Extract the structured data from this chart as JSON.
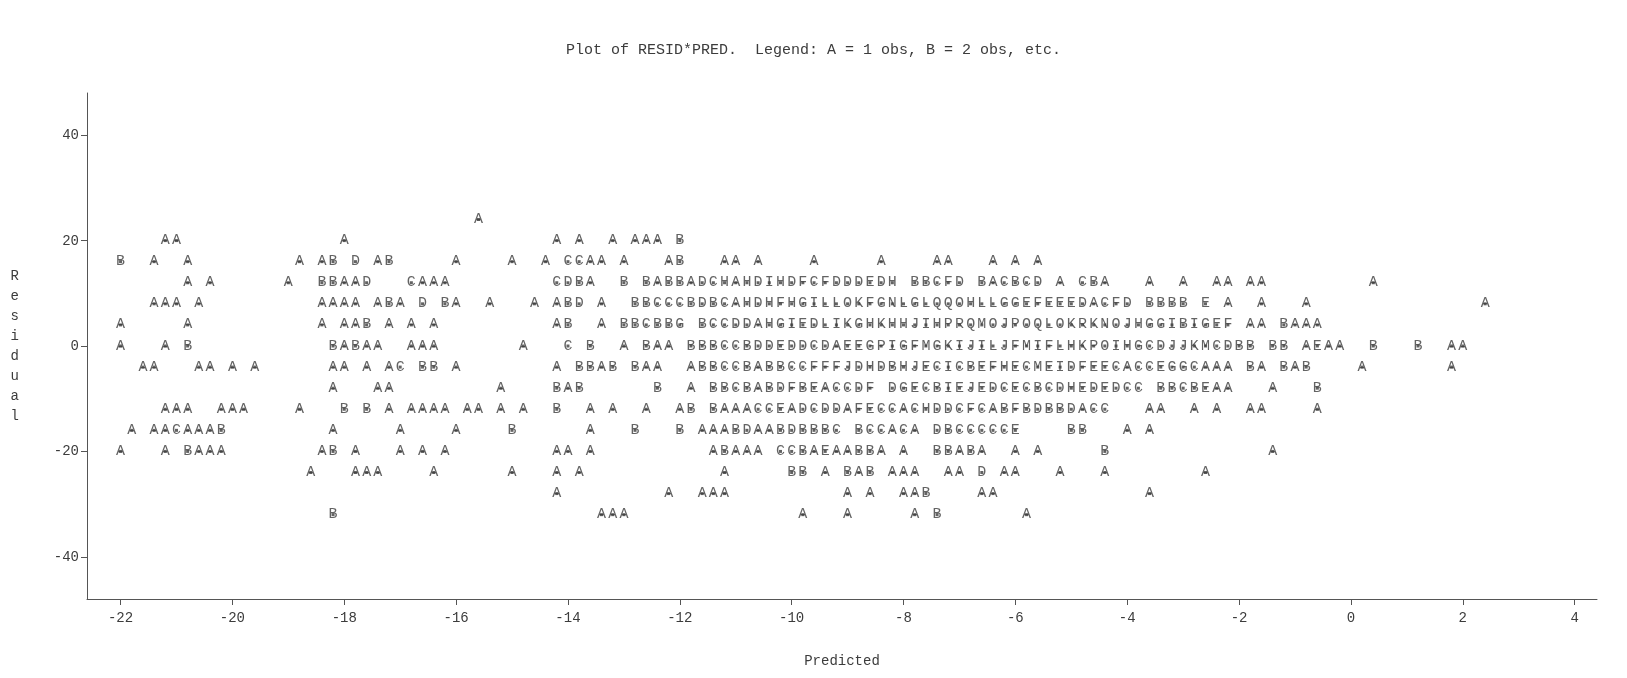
{
  "chart_data": {
    "type": "scatter",
    "title": "Plot of RESID*PRED.  Legend: A = 1 obs, B = 2 obs, etc.",
    "xlabel": "Predicted",
    "ylabel": "Residual",
    "xlim": [
      -22.6,
      4.4
    ],
    "xticks": [
      -22,
      -20,
      -18,
      -16,
      -14,
      -12,
      -10,
      -8,
      -6,
      -4,
      -2,
      0,
      2,
      4
    ],
    "ylim": [
      -48,
      48
    ],
    "yticks": [
      -40,
      -20,
      0,
      20,
      40
    ],
    "grid": false,
    "series": [
      {
        "color": "#3c3c3c",
        "x": [
          -15.6
        ],
        "values": [
          24
        ],
        "value_labels": [
          "A"
        ]
      },
      {
        "color": "#3c3c3c",
        "x": [
          -21.2,
          -21.0,
          -18.0,
          -14.2,
          -13.8,
          -13.2,
          -12.8,
          -12.6,
          -12.4,
          -12.0
        ],
        "values": [
          20,
          20,
          20,
          20,
          20,
          20,
          20,
          20,
          20,
          20
        ],
        "value_labels": [
          "A",
          "A",
          "A",
          "A",
          "A",
          "A",
          "A",
          "A",
          "A",
          "B"
        ]
      },
      {
        "color": "#3c3c3c",
        "x": [
          -22.0,
          -21.4,
          -20.8,
          -18.8,
          -18.4,
          -18.2,
          -17.8,
          -17.4,
          -17.2,
          -16.0,
          -15.0,
          -14.4,
          -14.0,
          -13.8,
          -13.6,
          -13.4,
          -13.0,
          -12.2,
          -12.0,
          -11.2,
          -11.0,
          -10.6,
          -9.6,
          -8.4,
          -7.4,
          -7.2,
          -6.4,
          -6.0,
          -5.6
        ],
        "values": [
          16,
          16,
          16,
          16,
          16,
          16,
          16,
          16,
          16,
          16,
          16,
          16,
          16,
          16,
          16,
          16,
          16,
          16,
          16,
          16,
          16,
          16,
          16,
          16,
          16,
          16,
          16,
          16,
          16
        ],
        "value_labels": [
          "B",
          "A",
          "A",
          "A",
          "A",
          "B",
          "D",
          "A",
          "B",
          "A",
          "A",
          "A",
          "C",
          "C",
          "A",
          "A",
          "A",
          "A",
          "B",
          "A",
          "A",
          "A",
          "A",
          "A",
          "A",
          "A",
          "A",
          "A",
          "A"
        ]
      },
      {
        "color": "#3c3c3c",
        "x": [
          -20.8,
          -20.4,
          -19.0,
          -18.4,
          -18.2,
          -18.0,
          -17.8,
          -17.6,
          -16.8,
          -16.6,
          -16.4,
          -16.2,
          -14.2,
          -14.0,
          -13.8,
          -13.6,
          -13.0,
          -12.6,
          -12.4,
          -12.2,
          -12.0,
          -11.8,
          -11.6,
          -11.4,
          -11.2,
          -11.0,
          -10.8,
          -10.6,
          -10.4,
          -10.2,
          -10.0,
          -9.8,
          -9.6,
          -9.4,
          -9.2,
          -9.0,
          -8.8,
          -8.6,
          -8.4,
          -8.2,
          -7.8,
          -7.6,
          -7.4,
          -7.2,
          -7.0,
          -6.6,
          -6.4,
          -6.2,
          -6.0,
          -5.8,
          -5.6,
          -5.2,
          -4.8,
          -4.6,
          -4.4,
          -3.6,
          -3.0,
          -2.4,
          -2.2,
          -1.8,
          -1.6,
          0.4
        ],
        "values": [
          12,
          12,
          12,
          12,
          12,
          12,
          12,
          12,
          12,
          12,
          12,
          12,
          12,
          12,
          12,
          12,
          12,
          12,
          12,
          12,
          12,
          12,
          12,
          12,
          12,
          12,
          12,
          12,
          12,
          12,
          12,
          12,
          12,
          12,
          12,
          12,
          12,
          12,
          12,
          12,
          12,
          12,
          12,
          12,
          12,
          12,
          12,
          12,
          12,
          12,
          12,
          12,
          12,
          12,
          12,
          12,
          12,
          12,
          12,
          12,
          12,
          12
        ],
        "value_labels": [
          "A",
          "A",
          "A",
          "B",
          "B",
          "A",
          "A",
          "D",
          "C",
          "A",
          "A",
          "A",
          "C",
          "D",
          "B",
          "A",
          "B",
          "B",
          "A",
          "B",
          "B",
          "A",
          "D",
          "C",
          "H",
          "A",
          "H",
          "D",
          "I",
          "H",
          "D",
          "F",
          "C",
          "F",
          "D",
          "D",
          "D",
          "E",
          "D",
          "H",
          "B",
          "B",
          "C",
          "F",
          "D",
          "B",
          "A",
          "C",
          "B",
          "C",
          "D",
          "A",
          "C",
          "B",
          "A",
          "A",
          "A",
          "A",
          "A",
          "A",
          "A",
          "A"
        ]
      },
      {
        "color": "#3c3c3c",
        "x": [
          -21.4,
          -21.2,
          -21.0,
          -20.6,
          -18.4,
          -18.2,
          -18.0,
          -17.8,
          -17.4,
          -17.2,
          -17.0,
          -16.6,
          -16.2,
          -16.0,
          -15.4,
          -14.6,
          -14.2,
          -14.0,
          -13.8,
          -13.4,
          -12.8,
          -12.6,
          -12.4,
          -12.2,
          -12.0,
          -11.8,
          -11.6,
          -11.4,
          -11.2,
          -11.0,
          -10.8,
          -10.6,
          -10.4,
          -10.2,
          -10.0,
          -9.8,
          -9.6,
          -9.4,
          -9.2,
          -9.0,
          -8.8,
          -8.6,
          -8.4,
          -8.2,
          -8.0,
          -7.8,
          -7.6,
          -7.4,
          -7.2,
          -7.0,
          -6.8,
          -6.6,
          -6.4,
          -6.2,
          -6.0,
          -5.8,
          -5.6,
          -5.4,
          -5.2,
          -5.0,
          -4.8,
          -4.6,
          -4.4,
          -4.2,
          -4.0,
          -3.6,
          -3.4,
          -3.2,
          -3.0,
          -2.6,
          -2.2,
          -1.6,
          -0.8,
          2.4
        ],
        "values": [
          8,
          8,
          8,
          8,
          8,
          8,
          8,
          8,
          8,
          8,
          8,
          8,
          8,
          8,
          8,
          8,
          8,
          8,
          8,
          8,
          8,
          8,
          8,
          8,
          8,
          8,
          8,
          8,
          8,
          8,
          8,
          8,
          8,
          8,
          8,
          8,
          8,
          8,
          8,
          8,
          8,
          8,
          8,
          8,
          8,
          8,
          8,
          8,
          8,
          8,
          8,
          8,
          8,
          8,
          8,
          8,
          8,
          8,
          8,
          8,
          8,
          8,
          8,
          8,
          8,
          8,
          8,
          8,
          8,
          8,
          8,
          8,
          8,
          8
        ],
        "value_labels": [
          "A",
          "A",
          "A",
          "A",
          "A",
          "A",
          "A",
          "A",
          "A",
          "B",
          "A",
          "D",
          "B",
          "A",
          "A",
          "A",
          "A",
          "B",
          "D",
          "A",
          "B",
          "B",
          "C",
          "C",
          "C",
          "B",
          "D",
          "B",
          "C",
          "A",
          "H",
          "D",
          "H",
          "F",
          "H",
          "G",
          "I",
          "L",
          "L",
          "O",
          "K",
          "F",
          "G",
          "N",
          "L",
          "G",
          "L",
          "Q",
          "Q",
          "O",
          "H",
          "L",
          "L",
          "G",
          "G",
          "E",
          "F",
          "E",
          "E",
          "E",
          "D",
          "A",
          "C",
          "F",
          "D",
          "B",
          "B",
          "B",
          "B",
          "E",
          "A",
          "A",
          "A",
          "A"
        ]
      },
      {
        "color": "#3c3c3c",
        "x": [
          -22.0,
          -20.8,
          -18.4,
          -18.0,
          -17.8,
          -17.6,
          -17.2,
          -16.8,
          -16.4,
          -14.2,
          -14.0,
          -13.4,
          -13.0,
          -12.8,
          -12.6,
          -12.4,
          -12.2,
          -12.0,
          -11.6,
          -11.4,
          -11.2,
          -11.0,
          -10.8,
          -10.6,
          -10.4,
          -10.2,
          -10.0,
          -9.8,
          -9.6,
          -9.4,
          -9.2,
          -9.0,
          -8.8,
          -8.6,
          -8.4,
          -8.2,
          -8.0,
          -7.8,
          -7.6,
          -7.4,
          -7.2,
          -7.0,
          -6.8,
          -6.6,
          -6.4,
          -6.2,
          -6.0,
          -5.8,
          -5.6,
          -5.4,
          -5.2,
          -5.0,
          -4.8,
          -4.6,
          -4.4,
          -4.2,
          -4.0,
          -3.8,
          -3.6,
          -3.4,
          -3.2,
          -3.0,
          -2.8,
          -2.6,
          -2.4,
          -2.2,
          -1.8,
          -1.6,
          -1.2,
          -1.0,
          -0.8,
          -0.6
        ],
        "values": [
          4,
          4,
          4,
          4,
          4,
          4,
          4,
          4,
          4,
          4,
          4,
          4,
          4,
          4,
          4,
          4,
          4,
          4,
          4,
          4,
          4,
          4,
          4,
          4,
          4,
          4,
          4,
          4,
          4,
          4,
          4,
          4,
          4,
          4,
          4,
          4,
          4,
          4,
          4,
          4,
          4,
          4,
          4,
          4,
          4,
          4,
          4,
          4,
          4,
          4,
          4,
          4,
          4,
          4,
          4,
          4,
          4,
          4,
          4,
          4,
          4,
          4,
          4,
          4,
          4,
          4,
          4,
          4,
          4,
          4,
          4,
          4
        ],
        "value_labels": [
          "A",
          "A",
          "A",
          "A",
          "A",
          "B",
          "A",
          "A",
          "A",
          "A",
          "B",
          "A",
          "B",
          "B",
          "C",
          "B",
          "B",
          "G",
          "B",
          "C",
          "C",
          "D",
          "D",
          "A",
          "H",
          "G",
          "I",
          "E",
          "D",
          "L",
          "I",
          "K",
          "G",
          "H",
          "K",
          "H",
          "H",
          "J",
          "I",
          "H",
          "P",
          "R",
          "Q",
          "M",
          "O",
          "J",
          "P",
          "O",
          "Q",
          "L",
          "O",
          "K",
          "R",
          "K",
          "N",
          "O",
          "J",
          "H",
          "G",
          "G",
          "I",
          "B",
          "I",
          "G",
          "E",
          "F",
          "A",
          "A",
          "B",
          "A",
          "A",
          "A"
        ]
      },
      {
        "color": "#3c3c3c",
        "x": [
          -22.0,
          -21.2,
          -20.8,
          -18.2,
          -18.0,
          -17.8,
          -17.6,
          -17.4,
          -16.8,
          -16.6,
          -16.4,
          -14.8,
          -14.0,
          -13.6,
          -13.0,
          -12.6,
          -12.4,
          -12.2,
          -11.8,
          -11.6,
          -11.4,
          -11.2,
          -11.0,
          -10.8,
          -10.6,
          -10.4,
          -10.2,
          -10.0,
          -9.8,
          -9.6,
          -9.4,
          -9.2,
          -9.0,
          -8.8,
          -8.6,
          -8.4,
          -8.2,
          -8.0,
          -7.8,
          -7.6,
          -7.4,
          -7.2,
          -7.0,
          -6.8,
          -6.6,
          -6.4,
          -6.2,
          -6.0,
          -5.8,
          -5.6,
          -5.4,
          -5.2,
          -5.0,
          -4.8,
          -4.6,
          -4.4,
          -4.2,
          -4.0,
          -3.8,
          -3.6,
          -3.4,
          -3.2,
          -3.0,
          -2.8,
          -2.6,
          -2.4,
          -2.2,
          -2.0,
          -1.8,
          -1.4,
          -1.2,
          -0.8,
          -0.6,
          -0.4,
          -0.2,
          0.4,
          1.2,
          1.8,
          2.0
        ],
        "values": [
          0,
          0,
          0,
          0,
          0,
          0,
          0,
          0,
          0,
          0,
          0,
          0,
          0,
          0,
          0,
          0,
          0,
          0,
          0,
          0,
          0,
          0,
          0,
          0,
          0,
          0,
          0,
          0,
          0,
          0,
          0,
          0,
          0,
          0,
          0,
          0,
          0,
          0,
          0,
          0,
          0,
          0,
          0,
          0,
          0,
          0,
          0,
          0,
          0,
          0,
          0,
          0,
          0,
          0,
          0,
          0,
          0,
          0,
          0,
          0,
          0,
          0,
          0,
          0,
          0,
          0,
          0,
          0,
          0,
          0,
          0,
          0,
          0,
          0,
          0,
          0,
          0,
          0,
          0
        ],
        "value_labels": [
          "A",
          "A",
          "B",
          "B",
          "A",
          "B",
          "A",
          "A",
          "A",
          "A",
          "A",
          "A",
          "C",
          "B",
          "A",
          "B",
          "A",
          "A",
          "B",
          "B",
          "B",
          "C",
          "C",
          "B",
          "D",
          "D",
          "E",
          "D",
          "D",
          "C",
          "D",
          "A",
          "E",
          "E",
          "G",
          "P",
          "I",
          "G",
          "F",
          "M",
          "G",
          "K",
          "I",
          "J",
          "I",
          "L",
          "J",
          "F",
          "M",
          "I",
          "F",
          "L",
          "H",
          "K",
          "P",
          "O",
          "I",
          "H",
          "G",
          "C",
          "D",
          "J",
          "J",
          "K",
          "M",
          "C",
          "D",
          "B",
          "B",
          "B",
          "B",
          "A",
          "E",
          "A",
          "A",
          "B",
          "B",
          "A",
          "A"
        ]
      },
      {
        "color": "#3c3c3c",
        "x": [
          -21.6,
          -21.4,
          -20.6,
          -20.4,
          -20.0,
          -19.6,
          -18.2,
          -18.0,
          -17.6,
          -17.2,
          -17.0,
          -16.6,
          -16.4,
          -16.0,
          -14.2,
          -13.8,
          -13.6,
          -13.4,
          -13.2,
          -12.8,
          -12.6,
          -12.4,
          -11.8,
          -11.6,
          -11.4,
          -11.2,
          -11.0,
          -10.8,
          -10.6,
          -10.4,
          -10.2,
          -10.0,
          -9.8,
          -9.6,
          -9.4,
          -9.2,
          -9.0,
          -8.8,
          -8.6,
          -8.4,
          -8.2,
          -8.0,
          -7.8,
          -7.6,
          -7.4,
          -7.2,
          -7.0,
          -6.8,
          -6.6,
          -6.4,
          -6.2,
          -6.0,
          -5.8,
          -5.6,
          -5.4,
          -5.2,
          -5.0,
          -4.8,
          -4.6,
          -4.4,
          -4.2,
          -4.0,
          -3.8,
          -3.6,
          -3.4,
          -3.2,
          -3.0,
          -2.8,
          -2.6,
          -2.4,
          -2.2,
          -1.8,
          -1.6,
          -1.2,
          -1.0,
          -0.8,
          0.2,
          1.8
        ],
        "values": [
          -4,
          -4,
          -4,
          -4,
          -4,
          -4,
          -4,
          -4,
          -4,
          -4,
          -4,
          -4,
          -4,
          -4,
          -4,
          -4,
          -4,
          -4,
          -4,
          -4,
          -4,
          -4,
          -4,
          -4,
          -4,
          -4,
          -4,
          -4,
          -4,
          -4,
          -4,
          -4,
          -4,
          -4,
          -4,
          -4,
          -4,
          -4,
          -4,
          -4,
          -4,
          -4,
          -4,
          -4,
          -4,
          -4,
          -4,
          -4,
          -4,
          -4,
          -4,
          -4,
          -4,
          -4,
          -4,
          -4,
          -4,
          -4,
          -4,
          -4,
          -4,
          -4,
          -4,
          -4,
          -4,
          -4,
          -4,
          -4,
          -4,
          -4,
          -4,
          -4,
          -4,
          -4,
          -4,
          -4,
          -4,
          -4
        ],
        "value_labels": [
          "A",
          "A",
          "A",
          "A",
          "A",
          "A",
          "A",
          "A",
          "A",
          "A",
          "C",
          "B",
          "B",
          "A",
          "A",
          "B",
          "B",
          "A",
          "B",
          "B",
          "A",
          "A",
          "A",
          "B",
          "B",
          "C",
          "C",
          "B",
          "A",
          "B",
          "B",
          "C",
          "C",
          "F",
          "F",
          "F",
          "J",
          "D",
          "H",
          "D",
          "B",
          "H",
          "J",
          "E",
          "C",
          "I",
          "C",
          "B",
          "E",
          "F",
          "H",
          "E",
          "C",
          "M",
          "E",
          "I",
          "D",
          "F",
          "E",
          "E",
          "C",
          "A",
          "C",
          "C",
          "E",
          "G",
          "G",
          "C",
          "A",
          "A",
          "A",
          "B",
          "A",
          "B",
          "A",
          "B",
          "A",
          "A"
        ]
      },
      {
        "color": "#3c3c3c",
        "x": [
          -18.2,
          -17.4,
          -17.2,
          -15.2,
          -14.2,
          -14.0,
          -13.8,
          -12.4,
          -11.8,
          -11.4,
          -11.2,
          -11.0,
          -10.8,
          -10.6,
          -10.4,
          -10.2,
          -10.0,
          -9.8,
          -9.6,
          -9.4,
          -9.2,
          -9.0,
          -8.8,
          -8.6,
          -8.2,
          -8.0,
          -7.8,
          -7.6,
          -7.4,
          -7.2,
          -7.0,
          -6.8,
          -6.6,
          -6.4,
          -6.2,
          -6.0,
          -5.8,
          -5.6,
          -5.4,
          -5.2,
          -5.0,
          -4.8,
          -4.6,
          -4.4,
          -4.2,
          -4.0,
          -3.8,
          -3.4,
          -3.2,
          -3.0,
          -2.8,
          -2.6,
          -2.4,
          -2.2,
          -1.4,
          -0.6
        ],
        "values": [
          -8,
          -8,
          -8,
          -8,
          -8,
          -8,
          -8,
          -8,
          -8,
          -8,
          -8,
          -8,
          -8,
          -8,
          -8,
          -8,
          -8,
          -8,
          -8,
          -8,
          -8,
          -8,
          -8,
          -8,
          -8,
          -8,
          -8,
          -8,
          -8,
          -8,
          -8,
          -8,
          -8,
          -8,
          -8,
          -8,
          -8,
          -8,
          -8,
          -8,
          -8,
          -8,
          -8,
          -8,
          -8,
          -8,
          -8,
          -8,
          -8,
          -8,
          -8,
          -8,
          -8,
          -8,
          -8,
          -8
        ],
        "value_labels": [
          "A",
          "A",
          "A",
          "A",
          "B",
          "A",
          "B",
          "B",
          "A",
          "B",
          "B",
          "C",
          "B",
          "A",
          "B",
          "D",
          "F",
          "B",
          "E",
          "A",
          "C",
          "C",
          "D",
          "F",
          "D",
          "G",
          "E",
          "C",
          "B",
          "I",
          "E",
          "J",
          "E",
          "D",
          "C",
          "E",
          "C",
          "B",
          "C",
          "D",
          "H",
          "E",
          "D",
          "E",
          "D",
          "C",
          "C",
          "B",
          "B",
          "C",
          "B",
          "E",
          "A",
          "A",
          "A",
          "B"
        ]
      },
      {
        "color": "#3c3c3c",
        "x": [
          -21.2,
          -21.0,
          -20.8,
          -20.2,
          -20.0,
          -19.8,
          -18.8,
          -18.0,
          -17.6,
          -17.2,
          -16.8,
          -16.6,
          -16.4,
          -16.2,
          -15.8,
          -15.6,
          -15.2,
          -14.8,
          -14.2,
          -13.6,
          -13.2,
          -12.6,
          -12.0,
          -11.8,
          -11.4,
          -11.2,
          -11.0,
          -10.8,
          -10.6,
          -10.4,
          -10.2,
          -10.0,
          -9.8,
          -9.6,
          -9.4,
          -9.2,
          -9.0,
          -8.8,
          -8.6,
          -8.4,
          -8.2,
          -8.0,
          -7.8,
          -7.6,
          -7.4,
          -7.2,
          -7.0,
          -6.8,
          -6.6,
          -6.4,
          -6.2,
          -6.0,
          -5.8,
          -5.6,
          -5.4,
          -5.2,
          -5.0,
          -4.8,
          -4.6,
          -4.4,
          -3.6,
          -3.4,
          -2.8,
          -2.4,
          -1.8,
          -1.6,
          -0.6
        ],
        "values": [
          -12,
          -12,
          -12,
          -12,
          -12,
          -12,
          -12,
          -12,
          -12,
          -12,
          -12,
          -12,
          -12,
          -12,
          -12,
          -12,
          -12,
          -12,
          -12,
          -12,
          -12,
          -12,
          -12,
          -12,
          -12,
          -12,
          -12,
          -12,
          -12,
          -12,
          -12,
          -12,
          -12,
          -12,
          -12,
          -12,
          -12,
          -12,
          -12,
          -12,
          -12,
          -12,
          -12,
          -12,
          -12,
          -12,
          -12,
          -12,
          -12,
          -12,
          -12,
          -12,
          -12,
          -12,
          -12,
          -12,
          -12,
          -12,
          -12,
          -12,
          -12,
          -12,
          -12,
          -12,
          -12,
          -12,
          -12
        ],
        "value_labels": [
          "A",
          "A",
          "A",
          "A",
          "A",
          "A",
          "A",
          "B",
          "B",
          "A",
          "A",
          "A",
          "A",
          "A",
          "A",
          "A",
          "A",
          "A",
          "B",
          "A",
          "A",
          "A",
          "A",
          "B",
          "B",
          "A",
          "A",
          "A",
          "C",
          "C",
          "E",
          "A",
          "D",
          "C",
          "D",
          "D",
          "A",
          "F",
          "E",
          "C",
          "C",
          "A",
          "C",
          "H",
          "D",
          "D",
          "C",
          "F",
          "C",
          "A",
          "B",
          "F",
          "B",
          "D",
          "B",
          "B",
          "D",
          "A",
          "C",
          "C",
          "A",
          "A",
          "A",
          "A",
          "A",
          "A",
          "A"
        ]
      },
      {
        "color": "#3c3c3c",
        "x": [
          -21.8,
          -21.4,
          -21.2,
          -21.0,
          -20.8,
          -20.6,
          -20.4,
          -20.2,
          -18.2,
          -17.0,
          -16.0,
          -15.0,
          -13.6,
          -12.8,
          -12.0,
          -11.6,
          -11.4,
          -11.2,
          -11.0,
          -10.8,
          -10.6,
          -10.4,
          -10.2,
          -10.0,
          -9.8,
          -9.6,
          -9.4,
          -9.2,
          -8.8,
          -8.6,
          -8.4,
          -8.2,
          -8.0,
          -7.8,
          -7.4,
          -7.2,
          -7.0,
          -6.8,
          -6.6,
          -6.4,
          -6.2,
          -6.0,
          -5.0,
          -4.8,
          -4.0,
          -3.6
        ],
        "values": [
          -16,
          -16,
          -16,
          -16,
          -16,
          -16,
          -16,
          -16,
          -16,
          -16,
          -16,
          -16,
          -16,
          -16,
          -16,
          -16,
          -16,
          -16,
          -16,
          -16,
          -16,
          -16,
          -16,
          -16,
          -16,
          -16,
          -16,
          -16,
          -16,
          -16,
          -16,
          -16,
          -16,
          -16,
          -16,
          -16,
          -16,
          -16,
          -16,
          -16,
          -16,
          -16,
          -16,
          -16,
          -16,
          -16
        ],
        "value_labels": [
          "A",
          "A",
          "A",
          "C",
          "A",
          "A",
          "A",
          "B",
          "A",
          "A",
          "A",
          "B",
          "A",
          "B",
          "B",
          "A",
          "A",
          "A",
          "B",
          "D",
          "A",
          "A",
          "B",
          "D",
          "B",
          "B",
          "B",
          "C",
          "B",
          "C",
          "C",
          "A",
          "C",
          "A",
          "D",
          "B",
          "C",
          "C",
          "C",
          "C",
          "C",
          "E",
          "B",
          "B",
          "A",
          "A"
        ]
      },
      {
        "color": "#3c3c3c",
        "x": [
          -22.0,
          -21.2,
          -20.8,
          -20.6,
          -20.4,
          -20.2,
          -18.4,
          -18.2,
          -17.8,
          -17.0,
          -16.6,
          -16.2,
          -14.2,
          -14.0,
          -13.6,
          -11.4,
          -11.2,
          -11.0,
          -10.8,
          -10.6,
          -10.2,
          -10.0,
          -9.8,
          -9.6,
          -9.4,
          -9.2,
          -9.0,
          -8.8,
          -8.6,
          -8.4,
          -8.0,
          -7.4,
          -7.2,
          -7.0,
          -6.8,
          -6.6,
          -6.0,
          -5.6,
          -4.4,
          -1.4
        ],
        "values": [
          -20,
          -20,
          -20,
          -20,
          -20,
          -20,
          -20,
          -20,
          -20,
          -20,
          -20,
          -20,
          -20,
          -20,
          -20,
          -20,
          -20,
          -20,
          -20,
          -20,
          -20,
          -20,
          -20,
          -20,
          -20,
          -20,
          -20,
          -20,
          -20,
          -20,
          -20,
          -20,
          -20,
          -20,
          -20,
          -20,
          -20,
          -20,
          -20,
          -20
        ],
        "value_labels": [
          "A",
          "A",
          "B",
          "A",
          "A",
          "A",
          "A",
          "B",
          "A",
          "A",
          "A",
          "A",
          "A",
          "A",
          "A",
          "A",
          "B",
          "A",
          "A",
          "A",
          "C",
          "C",
          "B",
          "A",
          "E",
          "A",
          "A",
          "B",
          "B",
          "A",
          "A",
          "B",
          "B",
          "A",
          "B",
          "A",
          "A",
          "A",
          "B",
          "A"
        ]
      },
      {
        "color": "#3c3c3c",
        "x": [
          -18.6,
          -17.8,
          -17.6,
          -17.4,
          -16.4,
          -15.0,
          -14.2,
          -13.8,
          -11.2,
          -10.0,
          -9.8,
          -9.4,
          -9.0,
          -8.8,
          -8.6,
          -8.2,
          -8.0,
          -7.8,
          -7.2,
          -7.0,
          -6.6,
          -6.2,
          -6.0,
          -5.2,
          -4.4,
          -2.6
        ],
        "values": [
          -24,
          -24,
          -24,
          -24,
          -24,
          -24,
          -24,
          -24,
          -24,
          -24,
          -24,
          -24,
          -24,
          -24,
          -24,
          -24,
          -24,
          -24,
          -24,
          -24,
          -24,
          -24,
          -24,
          -24,
          -24,
          -24
        ],
        "value_labels": [
          "A",
          "A",
          "A",
          "A",
          "A",
          "A",
          "A",
          "A",
          "A",
          "B",
          "B",
          "A",
          "B",
          "A",
          "B",
          "A",
          "A",
          "A",
          "A",
          "A",
          "D",
          "A",
          "A",
          "A",
          "A",
          "A"
        ]
      },
      {
        "color": "#3c3c3c",
        "x": [
          -14.2,
          -12.2,
          -11.6,
          -11.4,
          -11.2,
          -9.0,
          -8.6,
          -8.0,
          -7.8,
          -7.6,
          -6.6,
          -6.4,
          -3.6
        ],
        "values": [
          -28,
          -28,
          -28,
          -28,
          -28,
          -28,
          -28,
          -28,
          -28,
          -28,
          -28,
          -28,
          -28
        ],
        "value_labels": [
          "A",
          "A",
          "A",
          "A",
          "A",
          "A",
          "A",
          "A",
          "A",
          "B",
          "A",
          "A",
          "A"
        ]
      },
      {
        "color": "#3c3c3c",
        "x": [
          -18.2,
          -13.4,
          -13.2,
          -13.0,
          -9.8,
          -9.0,
          -7.8,
          -7.4,
          -5.8
        ],
        "values": [
          -32,
          -32,
          -32,
          -32,
          -32,
          -32,
          -32,
          -32,
          -32
        ],
        "value_labels": [
          "B",
          "A",
          "A",
          "A",
          "A",
          "A",
          "A",
          "B",
          "A"
        ]
      }
    ]
  }
}
